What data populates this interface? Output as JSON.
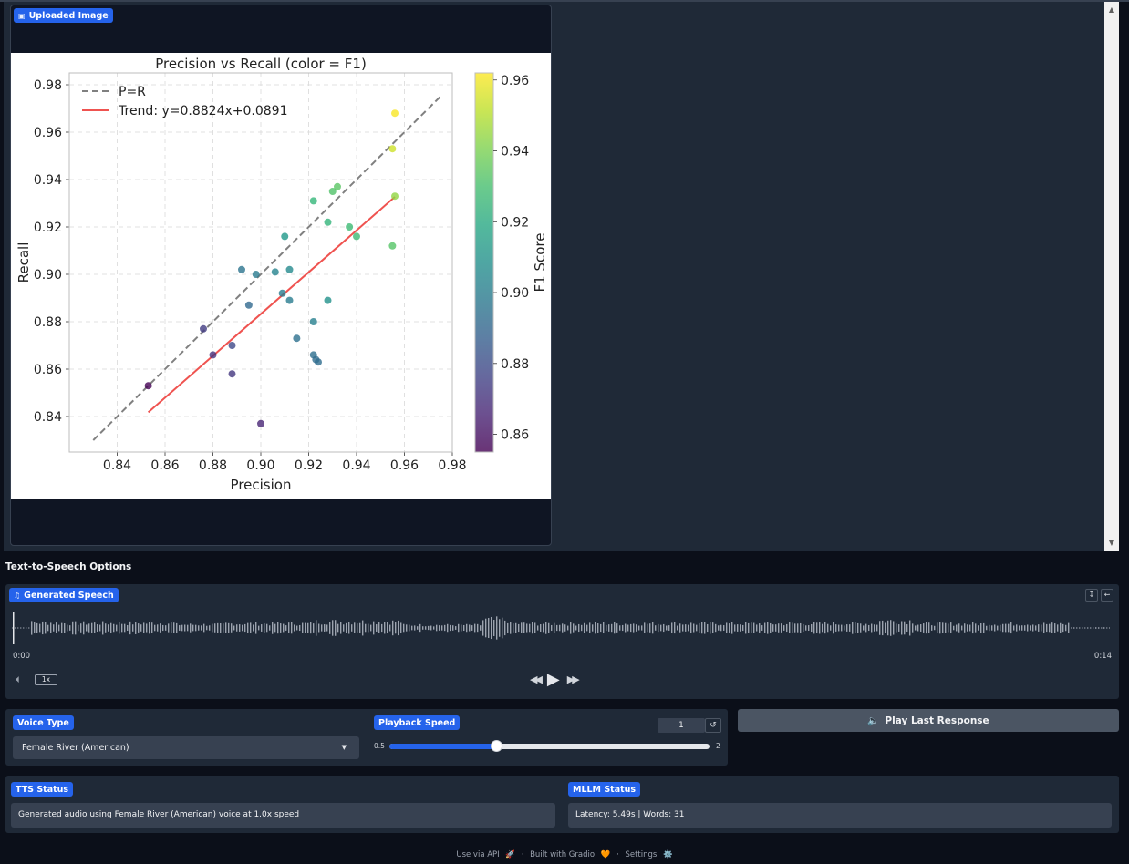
{
  "image_block": {
    "label": "Uploaded Image",
    "label_icon": "image-icon",
    "chart_data": {
      "type": "scatter",
      "title": "Precision vs Recall (color = F1)",
      "xlabel": "Precision",
      "ylabel": "Recall",
      "xlim": [
        0.82,
        0.98
      ],
      "ylim": [
        0.825,
        0.985
      ],
      "xticks": [
        "0.84",
        "0.86",
        "0.88",
        "0.90",
        "0.92",
        "0.94",
        "0.96",
        "0.98"
      ],
      "yticks": [
        "0.84",
        "0.86",
        "0.88",
        "0.90",
        "0.92",
        "0.94",
        "0.96",
        "0.98"
      ],
      "grid": true,
      "legend_position": "top-left",
      "legend": [
        "P=R",
        "Trend: y=0.8824x+0.0891"
      ],
      "colorbar_label": "F1 Score",
      "colorbar_range": [
        0.855,
        0.962
      ],
      "colorbar_ticks": [
        "0.86",
        "0.88",
        "0.90",
        "0.92",
        "0.94",
        "0.96"
      ],
      "identity_line": {
        "x": [
          0.83,
          0.975
        ]
      },
      "trend_line": {
        "slope": 0.8824,
        "intercept": 0.0891,
        "x": [
          0.853,
          0.956
        ]
      },
      "points": [
        {
          "x": 0.853,
          "y": 0.853,
          "f1": 0.855
        },
        {
          "x": 0.876,
          "y": 0.877,
          "f1": 0.874
        },
        {
          "x": 0.88,
          "y": 0.866,
          "f1": 0.87
        },
        {
          "x": 0.888,
          "y": 0.87,
          "f1": 0.878
        },
        {
          "x": 0.888,
          "y": 0.858,
          "f1": 0.872
        },
        {
          "x": 0.9,
          "y": 0.837,
          "f1": 0.866
        },
        {
          "x": 0.892,
          "y": 0.902,
          "f1": 0.896
        },
        {
          "x": 0.895,
          "y": 0.887,
          "f1": 0.891
        },
        {
          "x": 0.898,
          "y": 0.9,
          "f1": 0.899
        },
        {
          "x": 0.906,
          "y": 0.901,
          "f1": 0.903
        },
        {
          "x": 0.909,
          "y": 0.892,
          "f1": 0.9
        },
        {
          "x": 0.91,
          "y": 0.916,
          "f1": 0.912
        },
        {
          "x": 0.912,
          "y": 0.902,
          "f1": 0.906
        },
        {
          "x": 0.912,
          "y": 0.889,
          "f1": 0.9
        },
        {
          "x": 0.915,
          "y": 0.873,
          "f1": 0.895
        },
        {
          "x": 0.922,
          "y": 0.88,
          "f1": 0.901
        },
        {
          "x": 0.922,
          "y": 0.866,
          "f1": 0.894
        },
        {
          "x": 0.923,
          "y": 0.864,
          "f1": 0.893
        },
        {
          "x": 0.924,
          "y": 0.863,
          "f1": 0.893
        },
        {
          "x": 0.928,
          "y": 0.889,
          "f1": 0.909
        },
        {
          "x": 0.922,
          "y": 0.931,
          "f1": 0.926
        },
        {
          "x": 0.928,
          "y": 0.922,
          "f1": 0.925
        },
        {
          "x": 0.93,
          "y": 0.935,
          "f1": 0.932
        },
        {
          "x": 0.932,
          "y": 0.937,
          "f1": 0.934
        },
        {
          "x": 0.937,
          "y": 0.92,
          "f1": 0.928
        },
        {
          "x": 0.94,
          "y": 0.916,
          "f1": 0.928
        },
        {
          "x": 0.955,
          "y": 0.912,
          "f1": 0.933
        },
        {
          "x": 0.955,
          "y": 0.953,
          "f1": 0.954
        },
        {
          "x": 0.956,
          "y": 0.933,
          "f1": 0.944
        },
        {
          "x": 0.956,
          "y": 0.968,
          "f1": 0.961
        }
      ]
    }
  },
  "section_title": "Text-to-Speech Options",
  "audio": {
    "label": "Generated Speech",
    "label_icon": "music-note-icon",
    "time_start": "0:00",
    "time_end": "0:14",
    "playback_rate": "1x"
  },
  "voice": {
    "label": "Voice Type",
    "selected": "Female River (American)"
  },
  "speed": {
    "label": "Playback Speed",
    "value": "1",
    "min_label": "0.5",
    "max_label": "2",
    "fraction": 0.3333
  },
  "play_last": {
    "icon": "🔈",
    "label": "Play Last Response"
  },
  "tts_status": {
    "label": "TTS Status",
    "text": "Generated audio using Female River (American) voice at 1.0x speed"
  },
  "mllm_status": {
    "label": "MLLM Status",
    "text": "Latency: 5.49s | Words: 31"
  },
  "footer": {
    "api": "Use via API",
    "api_icon": "🚀",
    "built": "Built with Gradio",
    "built_icon": "🧡",
    "settings": "Settings",
    "settings_icon": "⚙️",
    "sep": "·"
  }
}
